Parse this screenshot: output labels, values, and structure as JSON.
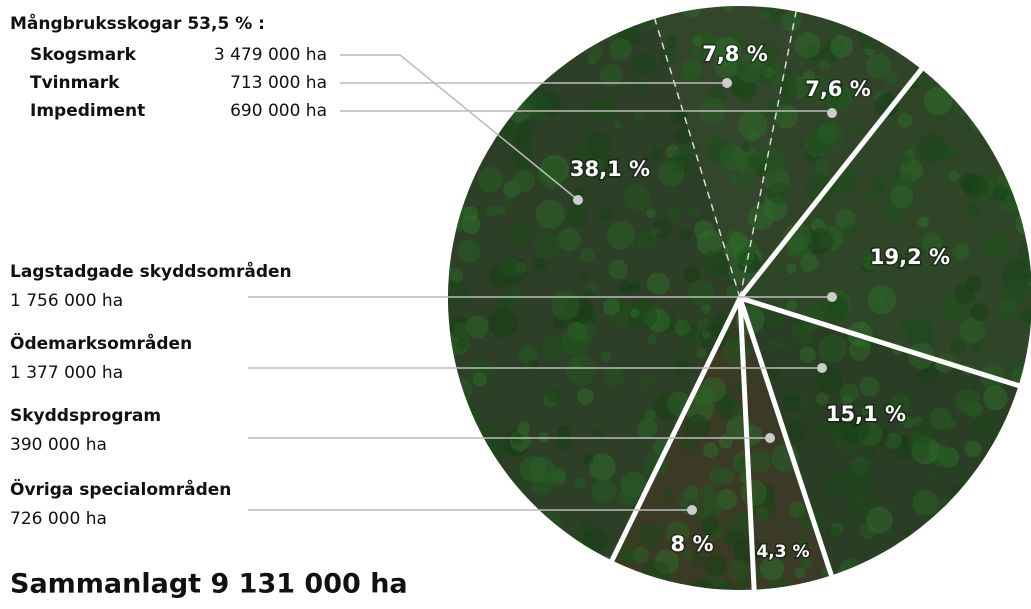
{
  "chart_data": {
    "type": "pie",
    "group_label": "Mångbruksskogar 53,5 % :",
    "categories": [
      "Skogsmark",
      "Tvinmark",
      "Impediment",
      "Lagstadgade skyddsområden",
      "Ödemarksområden",
      "Skyddsprogram",
      "Övriga specialområden"
    ],
    "area_labels": [
      "3 479 000 ha",
      "713 000 ha",
      "690 000 ha",
      "1 756 000 ha",
      "1 377 000 ha",
      "390 000 ha",
      "726 000 ha"
    ],
    "values": [
      38.1,
      7.8,
      7.6,
      19.2,
      15.1,
      4.3,
      8
    ],
    "value_labels": [
      "38,1 %",
      "7,8 %",
      "7,6 %",
      "19,2 %",
      "15,1 %",
      "4,3 %",
      "8 %"
    ],
    "total_label": "Sammanlagt 9 131 000 ha",
    "color": "#2f4228"
  }
}
